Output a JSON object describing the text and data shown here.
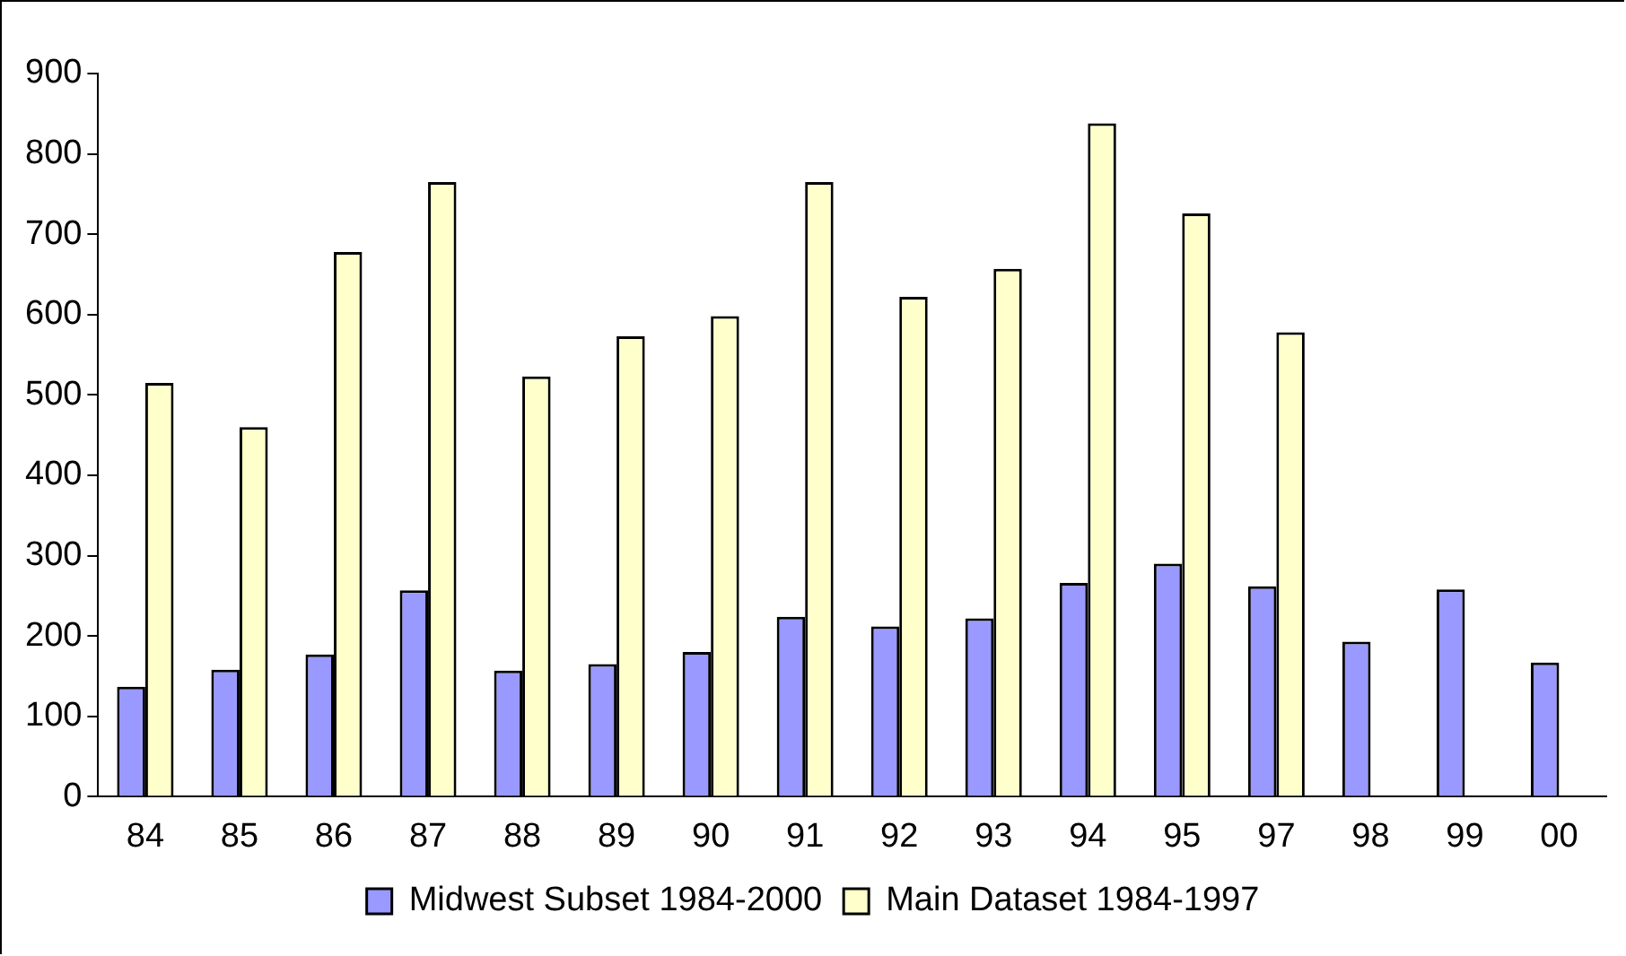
{
  "chart_data": {
    "type": "bar",
    "categories": [
      "84",
      "85",
      "86",
      "87",
      "88",
      "89",
      "90",
      "91",
      "92",
      "93",
      "94",
      "95",
      "97",
      "98",
      "99",
      "00"
    ],
    "series": [
      {
        "name": "Midwest Subset 1984-2000",
        "color": "#9999ff",
        "values": [
          137,
          158,
          177,
          257,
          157,
          165,
          180,
          224,
          212,
          222,
          266,
          290,
          262,
          193,
          258,
          167
        ]
      },
      {
        "name": "Main Dataset 1984-1997",
        "color": "#ffffcc",
        "values": [
          515,
          460,
          678,
          765,
          523,
          573,
          598,
          765,
          622,
          657,
          838,
          726,
          578,
          null,
          null,
          null
        ]
      }
    ],
    "ylim": [
      0,
      900
    ],
    "yticks": [
      0,
      100,
      200,
      300,
      400,
      500,
      600,
      700,
      800,
      900
    ],
    "grid": false,
    "legend": "bottom"
  }
}
